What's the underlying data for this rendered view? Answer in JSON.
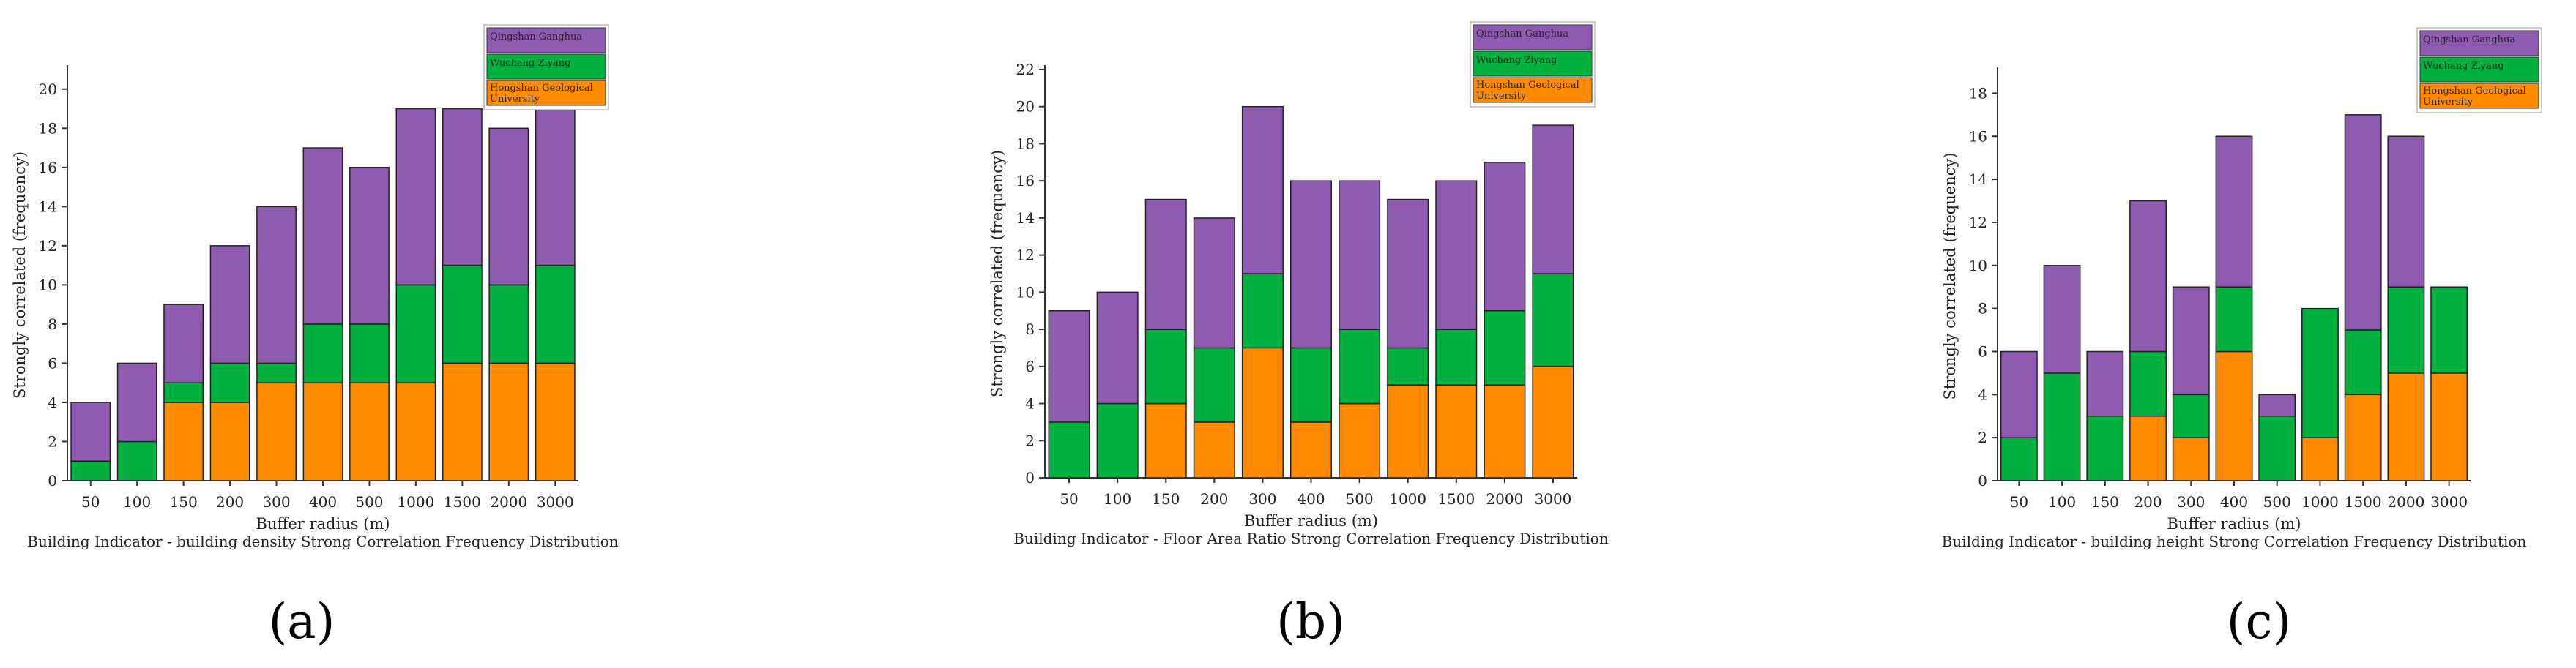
{
  "chart_data": [
    {
      "type": "bar",
      "stacked": true,
      "panel_label": "(a)",
      "title": "Building Indicator - building density Strong Correlation Frequency Distribution",
      "xlabel": "Buffer radius (m)",
      "ylabel": "Strongly correlated (frequency)",
      "ylim": [
        0,
        21
      ],
      "yticks": [
        0,
        2,
        4,
        6,
        8,
        10,
        12,
        14,
        16,
        18,
        20
      ],
      "categories": [
        "50",
        "100",
        "150",
        "200",
        "300",
        "400",
        "500",
        "1000",
        "1500",
        "2000",
        "3000"
      ],
      "series": [
        {
          "name": "Hongshan Geological University",
          "color": "#FF8C00",
          "values": [
            0,
            0,
            4,
            4,
            5,
            5,
            5,
            5,
            6,
            6,
            6
          ]
        },
        {
          "name": "Wuchang Ziyang",
          "color": "#00B140",
          "values": [
            1,
            2,
            1,
            2,
            1,
            3,
            3,
            5,
            5,
            4,
            5
          ]
        },
        {
          "name": "Qingshan Ganghua",
          "color": "#8E5BB0",
          "values": [
            3,
            4,
            4,
            6,
            8,
            9,
            8,
            9,
            8,
            8,
            8
          ]
        }
      ],
      "legend": [
        "Qingshan Ganghua",
        "Wuchang Ziyang",
        "Hongshan Geological University"
      ],
      "legend_position": "top-right"
    },
    {
      "type": "bar",
      "stacked": true,
      "panel_label": "(b)",
      "title": "Building Indicator - Floor Area Ratio Strong Correlation Frequency Distribution",
      "xlabel": "Buffer radius (m)",
      "ylabel": "Strongly correlated (frequency)",
      "ylim": [
        0,
        22
      ],
      "yticks": [
        0,
        2,
        4,
        6,
        8,
        10,
        12,
        14,
        16,
        18,
        20,
        22
      ],
      "categories": [
        "50",
        "100",
        "150",
        "200",
        "300",
        "400",
        "500",
        "1000",
        "1500",
        "2000",
        "3000"
      ],
      "series": [
        {
          "name": "Hongshan Geological University",
          "color": "#FF8C00",
          "values": [
            0,
            0,
            4,
            3,
            7,
            3,
            4,
            5,
            5,
            5,
            6
          ]
        },
        {
          "name": "Wuchang Ziyang",
          "color": "#00B140",
          "values": [
            3,
            4,
            4,
            4,
            4,
            4,
            4,
            2,
            3,
            4,
            5
          ]
        },
        {
          "name": "Qingshan Ganghua",
          "color": "#8E5BB0",
          "values": [
            6,
            6,
            7,
            7,
            9,
            9,
            8,
            8,
            8,
            8,
            8
          ]
        }
      ],
      "legend": [
        "Qingshan Ganghua",
        "Wuchang Ziyang",
        "Hongshan Geological University"
      ],
      "legend_position": "top-right"
    },
    {
      "type": "bar",
      "stacked": true,
      "panel_label": "(c)",
      "title": "Building Indicator - building height Strong Correlation Frequency Distribution",
      "xlabel": "Buffer radius (m)",
      "ylabel": "Strongly correlated (frequency)",
      "ylim": [
        0,
        19
      ],
      "yticks": [
        0,
        2,
        4,
        6,
        8,
        10,
        12,
        14,
        16,
        18
      ],
      "categories": [
        "50",
        "100",
        "150",
        "200",
        "300",
        "400",
        "500",
        "1000",
        "1500",
        "2000",
        "3000"
      ],
      "series": [
        {
          "name": "Hongshan Geological University",
          "color": "#FF8C00",
          "values": [
            0,
            0,
            0,
            3,
            2,
            6,
            0,
            2,
            4,
            5,
            5
          ]
        },
        {
          "name": "Wuchang Ziyang",
          "color": "#00B140",
          "values": [
            2,
            5,
            3,
            3,
            2,
            3,
            3,
            6,
            3,
            4,
            4
          ]
        },
        {
          "name": "Qingshan Ganghua",
          "color": "#8E5BB0",
          "values": [
            4,
            5,
            3,
            7,
            5,
            7,
            1,
            0,
            10,
            7,
            0
          ]
        }
      ],
      "legend": [
        "Qingshan Ganghua",
        "Wuchang Ziyang",
        "Hongshan Geological University"
      ],
      "legend_position": "top-right"
    }
  ]
}
